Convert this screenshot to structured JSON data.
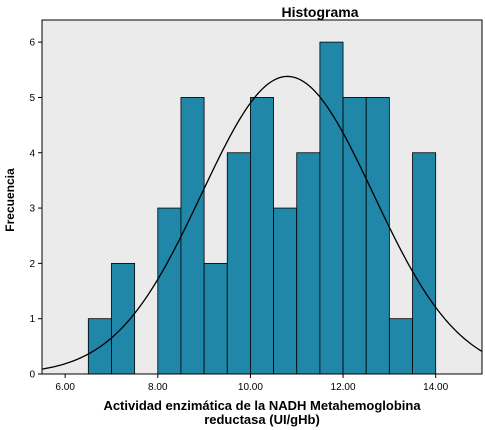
{
  "chart_data": {
    "type": "bar",
    "title": "Histograma",
    "xlabel_line1": "Actividad enzimática de la NADH Metahemoglobina",
    "xlabel_line2": "reductasa (UI/gHb)",
    "ylabel": "Frecuencia",
    "xlim": [
      5.5,
      15.0
    ],
    "ylim": [
      0,
      6.4
    ],
    "x_ticks": [
      6.0,
      8.0,
      10.0,
      12.0,
      14.0
    ],
    "x_tick_labels": [
      "6.00",
      "8.00",
      "10.00",
      "12.00",
      "14.00"
    ],
    "y_ticks": [
      0,
      1,
      2,
      3,
      4,
      5,
      6
    ],
    "y_tick_labels": [
      "0",
      "1",
      "2",
      "3",
      "4",
      "5",
      "6"
    ],
    "bin_width": 0.5,
    "bin_starts": [
      6.5,
      7.0,
      7.5,
      8.0,
      8.5,
      9.0,
      9.5,
      10.0,
      10.5,
      11.0,
      11.5,
      12.0,
      12.5,
      13.0,
      13.5
    ],
    "values": [
      1,
      2,
      0,
      3,
      5,
      2,
      4,
      5,
      3,
      4,
      6,
      5,
      5,
      1,
      4
    ],
    "normal_curve": {
      "mean": 10.8,
      "sd": 1.85,
      "peak": 5.38
    },
    "grid": false,
    "colors": {
      "bar_fill": "#2187a8",
      "bar_stroke": "#000000",
      "plot_bg": "#ebebeb",
      "curve": "#000000"
    }
  }
}
